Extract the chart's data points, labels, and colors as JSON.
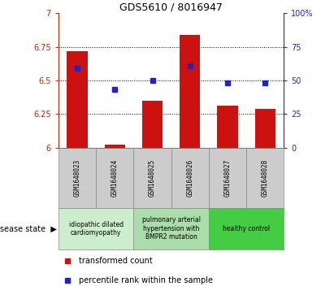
{
  "title": "GDS5610 / 8016947",
  "samples": [
    "GSM1648023",
    "GSM1648024",
    "GSM1648025",
    "GSM1648026",
    "GSM1648027",
    "GSM1648028"
  ],
  "bar_values": [
    6.72,
    6.02,
    6.35,
    6.84,
    6.31,
    6.29
  ],
  "dot_values": [
    6.59,
    6.43,
    6.5,
    6.61,
    6.48,
    6.48
  ],
  "bar_base": 6.0,
  "ylim_left": [
    6.0,
    7.0
  ],
  "ylim_right": [
    0,
    100
  ],
  "yticks_left": [
    6.0,
    6.25,
    6.5,
    6.75,
    7.0
  ],
  "ytick_labels_left": [
    "6",
    "6.25",
    "6.5",
    "6.75",
    "7"
  ],
  "yticks_right": [
    0,
    25,
    50,
    75,
    100
  ],
  "ytick_labels_right": [
    "0",
    "25",
    "50",
    "75",
    "100%"
  ],
  "gridlines": [
    6.25,
    6.5,
    6.75
  ],
  "bar_color": "#cc1111",
  "dot_color": "#2222cc",
  "bar_width": 0.55,
  "disease_groups": [
    {
      "label": "idiopathic dilated\ncardiomyopathy",
      "start": 0,
      "end": 1,
      "color": "#cceecc"
    },
    {
      "label": "pulmonary arterial\nhypertension with\nBMPR2 mutation",
      "start": 2,
      "end": 3,
      "color": "#aaddaa"
    },
    {
      "label": "healthy control",
      "start": 4,
      "end": 5,
      "color": "#44cc44"
    }
  ],
  "disease_state_label": "disease state",
  "legend_bar_label": "transformed count",
  "legend_dot_label": "percentile rank within the sample",
  "left_tick_color": "#cc2200",
  "right_tick_color": "#2222cc",
  "bg_color": "#ffffff",
  "sample_box_color": "#cccccc",
  "sample_box_edge": "#888888"
}
